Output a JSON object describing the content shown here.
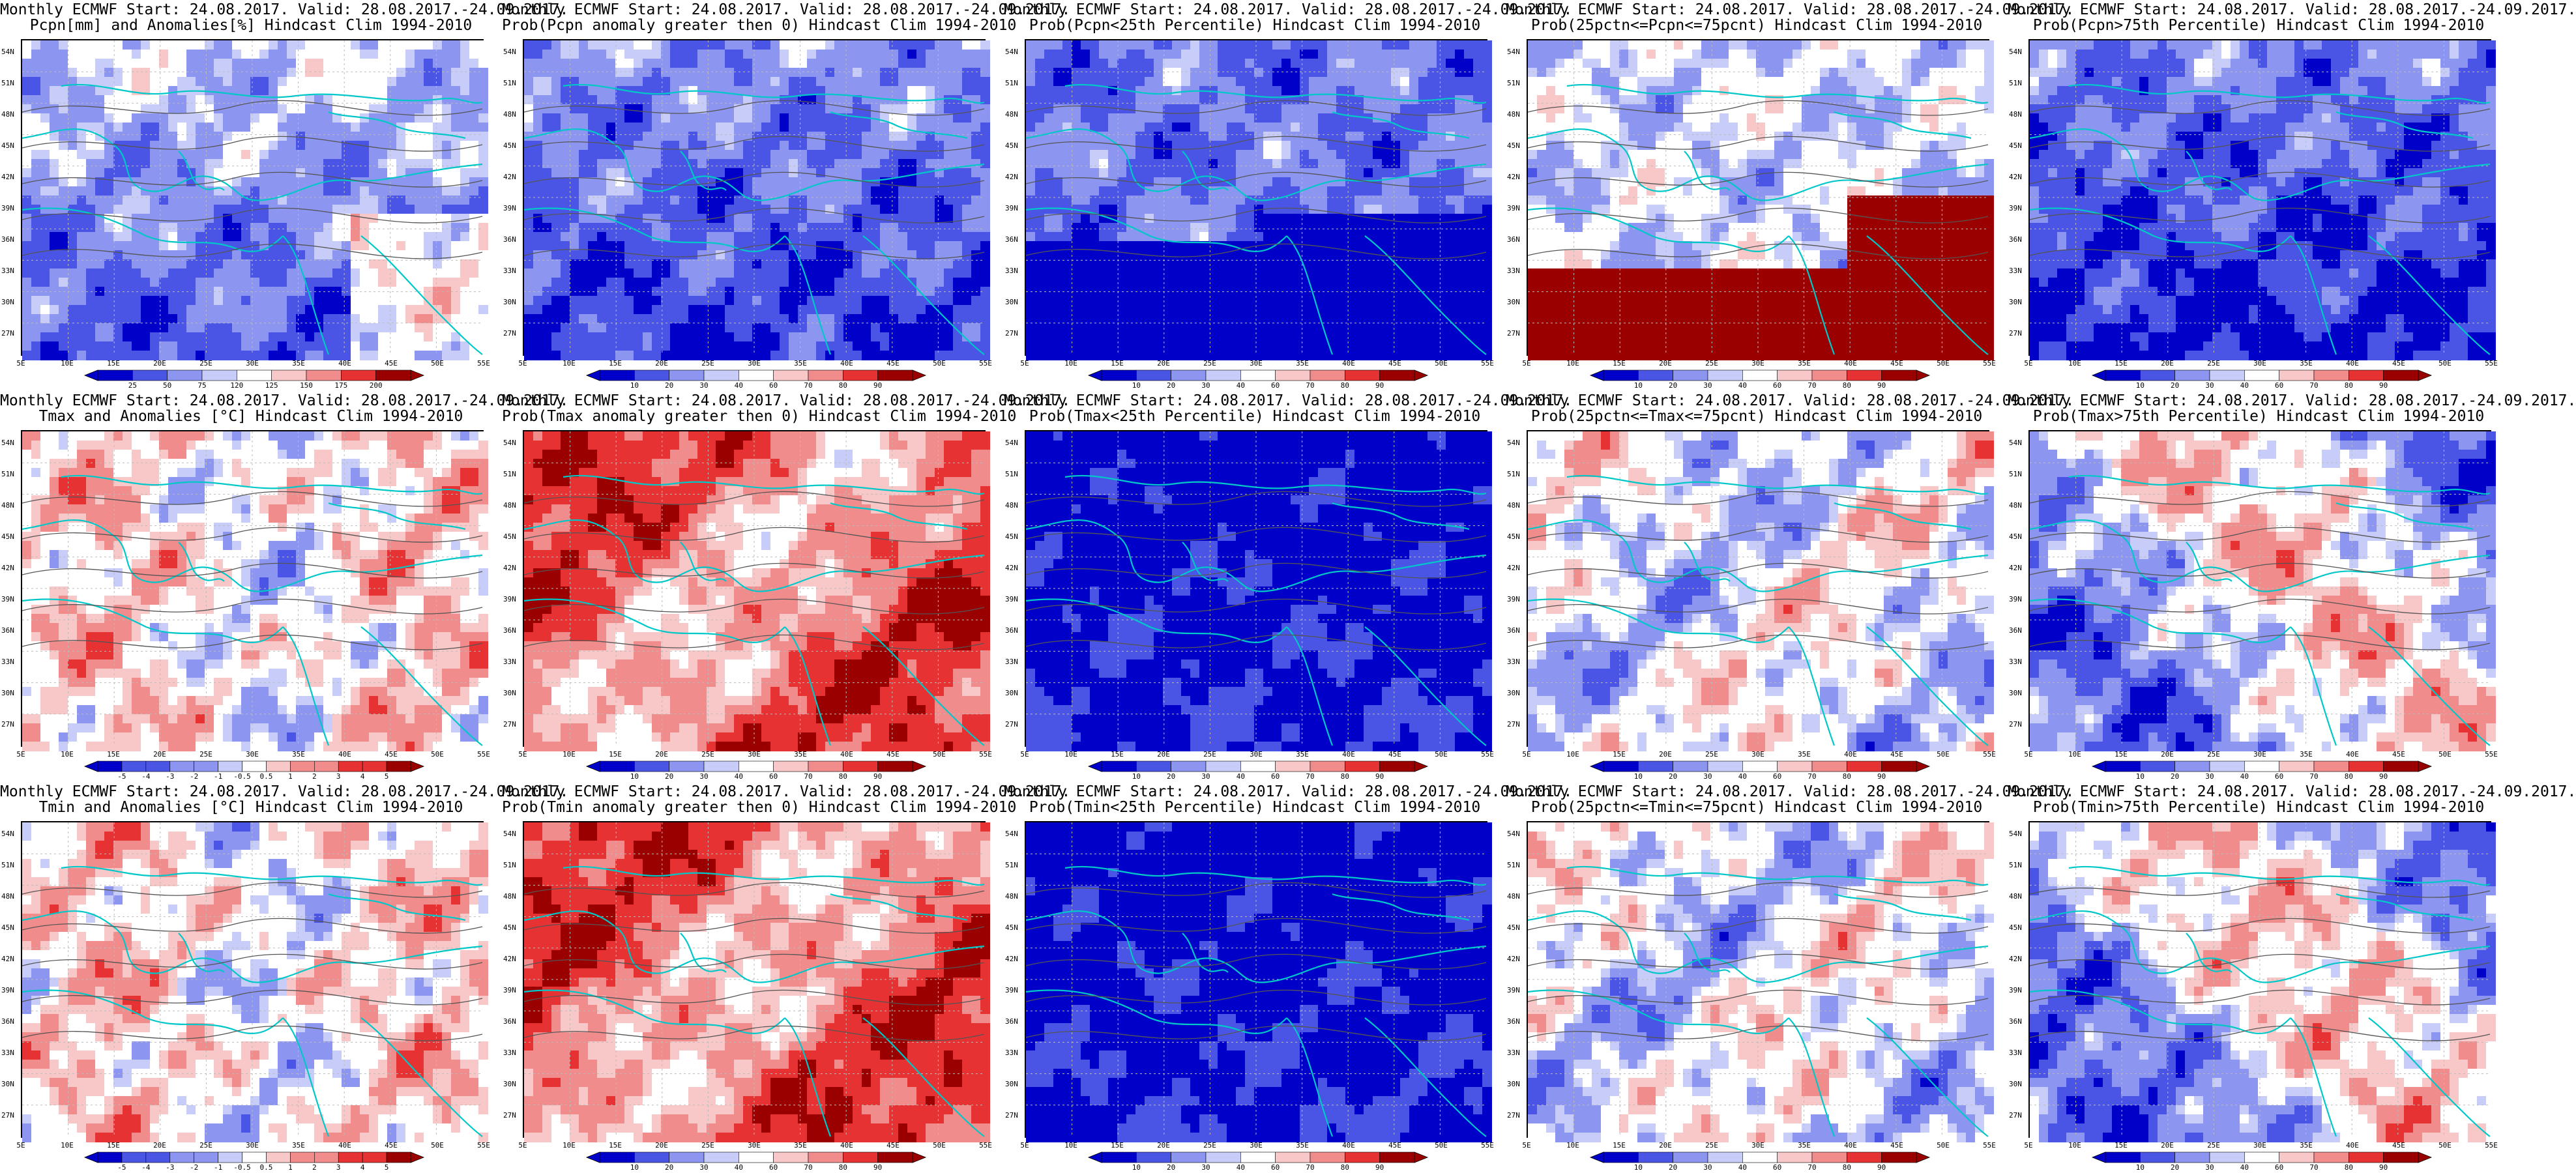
{
  "rows": [
    [
      {
        "title1": "Monthly ECMWF Start: 24.08.2017. Valid: 28.08.2017.-24.09.2017.",
        "title2": "Pcpn[mm] and Anomalies[%] Hindcast Clim 1994-2010",
        "scheme": "pcpn_anom",
        "colorbar": [
          "25",
          "50",
          "75",
          "120",
          "125",
          "150",
          "175",
          "200"
        ]
      },
      {
        "title1": "Monthly ECMWF Start: 24.08.2017. Valid: 28.08.2017.-24.09.2017.",
        "title2": "Prob(Pcpn anomaly greater then 0) Hindcast Clim 1994-2010",
        "scheme": "prob_above_0",
        "colorbar": [
          "10",
          "20",
          "30",
          "40",
          "60",
          "70",
          "80",
          "90"
        ]
      },
      {
        "title1": "Monthly ECMWF Start: 24.08.2017. Valid: 28.08.2017.-24.09.2017.",
        "title2": "Prob(Pcpn<25th Percentile) Hindcast Clim 1994-2010",
        "scheme": "prob_low",
        "colorbar": [
          "10",
          "20",
          "30",
          "40",
          "60",
          "70",
          "80",
          "90"
        ]
      },
      {
        "title1": "Monthly ECMWF Start: 24.08.2017. Valid: 28.08.2017.-24.09.2017.",
        "title2": "Prob(25pctn<=Pcpn<=75pcnt) Hindcast Clim 1994-2010",
        "scheme": "prob_mid",
        "colorbar": [
          "10",
          "20",
          "30",
          "40",
          "60",
          "70",
          "80",
          "90"
        ]
      },
      {
        "title1": "Monthly ECMWF Start: 24.08.2017. Valid: 28.08.2017.-24.09.2017.",
        "title2": "Prob(Pcpn>75th Percentile) Hindcast Clim 1994-2010",
        "scheme": "prob_high_pcpn",
        "colorbar": [
          "10",
          "20",
          "30",
          "40",
          "60",
          "70",
          "80",
          "90"
        ]
      }
    ],
    [
      {
        "title1": "Monthly ECMWF Start: 24.08.2017. Valid: 28.08.2017.-24.09.2017.",
        "title2": "Tmax and Anomalies [°C] Hindcast Clim 1994-2010",
        "scheme": "t_anom",
        "colorbar": [
          "-5",
          "-4",
          "-3",
          "-2",
          "-1",
          "-0.5",
          "0.5",
          "1",
          "2",
          "3",
          "4",
          "5"
        ]
      },
      {
        "title1": "Monthly ECMWF Start: 24.08.2017. Valid: 28.08.2017.-24.09.2017.",
        "title2": "Prob(Tmax anomaly greater then 0) Hindcast Clim 1994-2010",
        "scheme": "prob_above_0_t",
        "colorbar": [
          "10",
          "20",
          "30",
          "40",
          "60",
          "70",
          "80",
          "90"
        ]
      },
      {
        "title1": "Monthly ECMWF Start: 24.08.2017. Valid: 28.08.2017.-24.09.2017.",
        "title2": "Prob(Tmax<25th Percentile) Hindcast Clim 1994-2010",
        "scheme": "prob_low_t",
        "colorbar": [
          "10",
          "20",
          "30",
          "40",
          "60",
          "70",
          "80",
          "90"
        ]
      },
      {
        "title1": "Monthly ECMWF Start: 24.08.2017. Valid: 28.08.2017.-24.09.2017.",
        "title2": "Prob(25pctn<=Tmax<=75pcnt) Hindcast Clim 1994-2010",
        "scheme": "prob_mid_t",
        "colorbar": [
          "10",
          "20",
          "30",
          "40",
          "60",
          "70",
          "80",
          "90"
        ]
      },
      {
        "title1": "Monthly ECMWF Start: 24.08.2017. Valid: 28.08.2017.-24.09.2017.",
        "title2": "Prob(Tmax>75th Percentile) Hindcast Clim 1994-2010",
        "scheme": "prob_high_t",
        "colorbar": [
          "10",
          "20",
          "30",
          "40",
          "60",
          "70",
          "80",
          "90"
        ]
      }
    ],
    [
      {
        "title1": "Monthly ECMWF Start: 24.08.2017. Valid: 28.08.2017.-24.09.2017.",
        "title2": "Tmin and Anomalies [°C] Hindcast Clim 1994-2010",
        "scheme": "t_anom",
        "colorbar": [
          "-5",
          "-4",
          "-3",
          "-2",
          "-1",
          "-0.5",
          "0.5",
          "1",
          "2",
          "3",
          "4",
          "5"
        ]
      },
      {
        "title1": "Monthly ECMWF Start: 24.08.2017. Valid: 28.08.2017.-24.09.2017.",
        "title2": "Prob(Tmin anomaly greater then 0) Hindcast Clim 1994-2010",
        "scheme": "prob_above_0_t",
        "colorbar": [
          "10",
          "20",
          "30",
          "40",
          "60",
          "70",
          "80",
          "90"
        ]
      },
      {
        "title1": "Monthly ECMWF Start: 24.08.2017. Valid: 28.08.2017.-24.09.2017.",
        "title2": "Prob(Tmin<25th Percentile) Hindcast Clim 1994-2010",
        "scheme": "prob_low_t",
        "colorbar": [
          "10",
          "20",
          "30",
          "40",
          "60",
          "70",
          "80",
          "90"
        ]
      },
      {
        "title1": "Monthly ECMWF Start: 24.08.2017. Valid: 28.08.2017.-24.09.2017.",
        "title2": "Prob(25pctn<=Tmin<=75pcnt) Hindcast Clim 1994-2010",
        "scheme": "prob_mid_t",
        "colorbar": [
          "10",
          "20",
          "30",
          "40",
          "60",
          "70",
          "80",
          "90"
        ]
      },
      {
        "title1": "Monthly ECMWF Start: 24.08.2017. Valid: 28.08.2017.-24.09.2017.",
        "title2": "Prob(Tmin>75th Percentile) Hindcast Clim 1994-2010",
        "scheme": "prob_high_t",
        "colorbar": [
          "10",
          "20",
          "30",
          "40",
          "60",
          "70",
          "80",
          "90"
        ]
      }
    ]
  ],
  "lat_labels": [
    "54N",
    "51N",
    "48N",
    "45N",
    "42N",
    "39N",
    "36N",
    "33N",
    "30N",
    "27N"
  ],
  "lon_labels": [
    "5E",
    "10E",
    "15E",
    "20E",
    "25E",
    "30E",
    "35E",
    "40E",
    "45E",
    "50E",
    "55E"
  ],
  "colors": {
    "blue_dark": "#0000c8",
    "blue_mid": "#4a55e6",
    "blue_light": "#8c96f0",
    "blue_pale": "#c8ccf8",
    "red_pale": "#f8c8c8",
    "red_light": "#f08c8c",
    "red_mid": "#e63232",
    "red_dark": "#9b0000",
    "coast": "#00c8c8",
    "contour": "#555555"
  }
}
